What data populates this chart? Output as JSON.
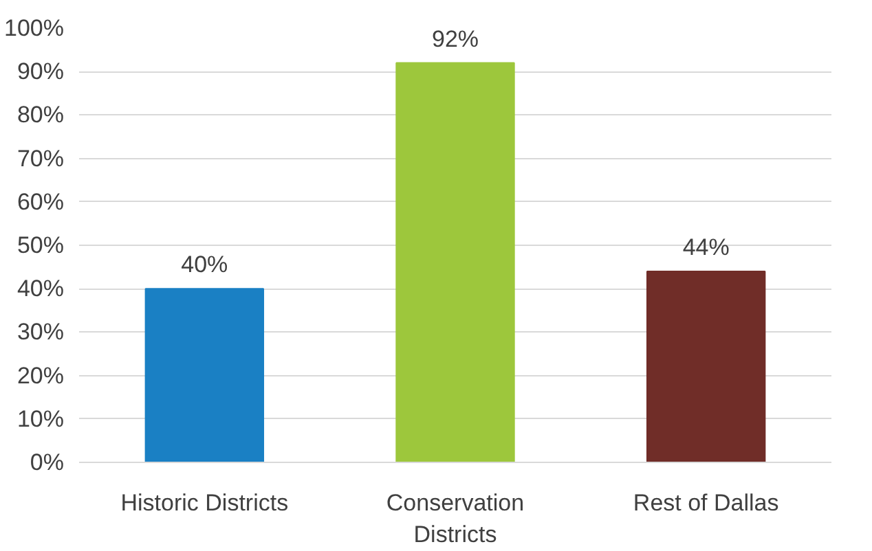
{
  "chart_data": {
    "type": "bar",
    "categories": [
      "Historic Districts",
      "Conservation Districts",
      "Rest of Dallas"
    ],
    "values": [
      40,
      92,
      44
    ],
    "colors": [
      "#1a80c4",
      "#9dc73c",
      "#702d28"
    ],
    "value_labels": [
      "40%",
      "92%",
      "44%"
    ],
    "ylim": [
      0,
      100
    ],
    "yticks": [
      {
        "value": 0,
        "label": "0%"
      },
      {
        "value": 10,
        "label": "10%"
      },
      {
        "value": 20,
        "label": "20%"
      },
      {
        "value": 30,
        "label": "30%"
      },
      {
        "value": 40,
        "label": "40%"
      },
      {
        "value": 50,
        "label": "50%"
      },
      {
        "value": 60,
        "label": "60%"
      },
      {
        "value": 70,
        "label": "70%"
      },
      {
        "value": 80,
        "label": "80%"
      },
      {
        "value": 90,
        "label": "90%"
      },
      {
        "value": 100,
        "label": "100%"
      }
    ],
    "grid": "y"
  }
}
